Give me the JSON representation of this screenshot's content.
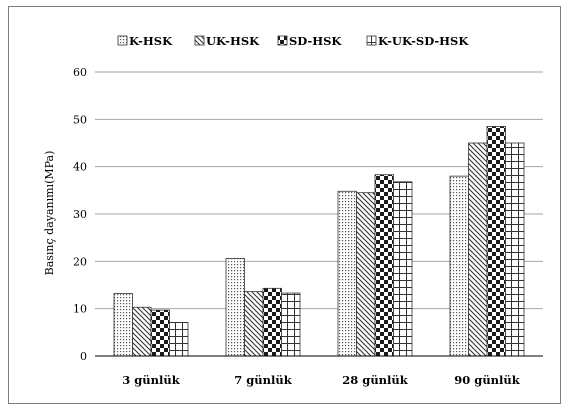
{
  "chart_data": {
    "type": "bar",
    "title": "",
    "xlabel": "",
    "ylabel": "Basınç dayanımı(MPa)",
    "ylim": [
      0,
      60
    ],
    "yticks": [
      0,
      10,
      20,
      30,
      40,
      50,
      60
    ],
    "grid": true,
    "legend_position": "top",
    "categories": [
      "3 günlük",
      "7 günlük",
      "28 günlük",
      "90 günlük"
    ],
    "series": [
      {
        "name": "K-HSK",
        "pattern": "dots",
        "values": [
          13.2,
          20.6,
          34.8,
          38.0
        ]
      },
      {
        "name": "UK-HSK",
        "pattern": "diagonal",
        "values": [
          10.3,
          13.6,
          34.5,
          45.0
        ]
      },
      {
        "name": "SD-HSK",
        "pattern": "checker",
        "values": [
          9.7,
          14.3,
          38.3,
          48.5
        ]
      },
      {
        "name": "K-UK-SD-HSK",
        "pattern": "grid",
        "values": [
          7.1,
          13.3,
          36.8,
          45.0
        ]
      }
    ]
  }
}
